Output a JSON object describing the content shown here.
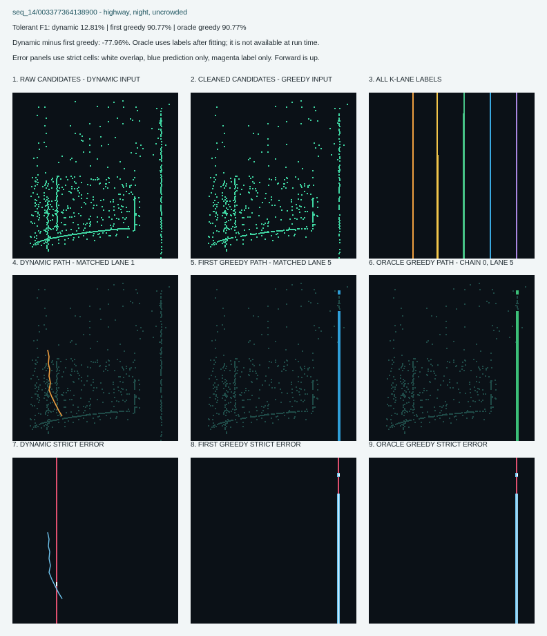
{
  "header": {
    "sequence": "seq_14/003377364138900 - highway, night, uncrowded",
    "f1_line": "Tolerant F1: dynamic 12.81% | first greedy 90.77% | oracle greedy 90.77%",
    "note_line": "Dynamic minus first greedy: -77.96%. Oracle uses labels after fitting; it is not available at run time.",
    "legend_line": "Error panels use strict cells: white overlap, blue prediction only, magenta label only. Forward is up."
  },
  "panels": [
    {
      "title": "1. RAW CANDIDATES - DYNAMIC INPUT"
    },
    {
      "title": "2. CLEANED CANDIDATES - GREEDY INPUT"
    },
    {
      "title": "3. ALL K-LANE LABELS"
    },
    {
      "title": "4. DYNAMIC PATH - MATCHED LANE 1"
    },
    {
      "title": "5. FIRST GREEDY PATH - MATCHED LANE 5"
    },
    {
      "title": "6. ORACLE GREEDY PATH - CHAIN 0, LANE 5"
    },
    {
      "title": "7. DYNAMIC STRICT ERROR"
    },
    {
      "title": "8. FIRST GREEDY STRICT ERROR"
    },
    {
      "title": "9. ORACLE GREEDY STRICT ERROR"
    }
  ],
  "colors": {
    "background": "#0b1117",
    "candidate": "#3fd6a2",
    "candidate_dim": "#1f4a47",
    "lane1": "#f0a040",
    "lane2": "#f3c64a",
    "lane3": "#47c487",
    "lane4": "#3aa8df",
    "lane5": "#a986e0",
    "prediction": "#2f9fd8",
    "oracle": "#3cbf78",
    "label_only": "#e0506f",
    "overlap": "#ffffff",
    "error_pred": "#6fc4ee"
  },
  "icons": []
}
